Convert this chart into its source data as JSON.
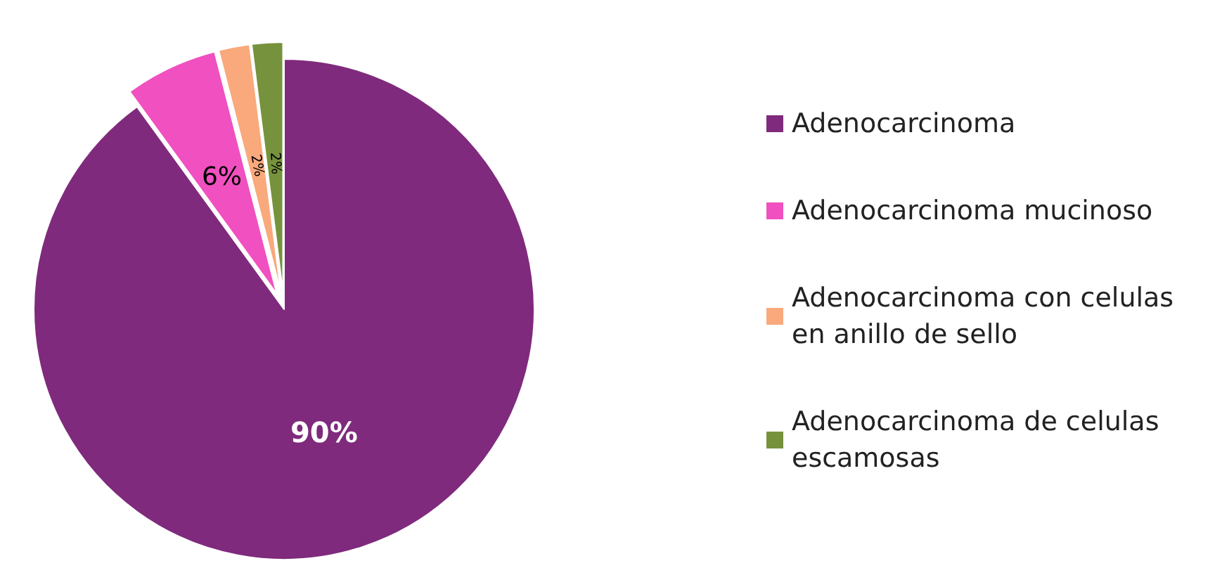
{
  "chart_data": {
    "type": "pie",
    "categories": [
      "Adenocarcinoma",
      "Adenocarcinoma mucinoso",
      "Adenocarcinoma con celulas en anillo de sello",
      "Adenocarcinoma de celulas escamosas"
    ],
    "values": [
      90,
      6,
      2,
      2
    ],
    "colors": [
      "#7f2a7c",
      "#f050c0",
      "#f9a97c",
      "#76923c"
    ],
    "value_labels": [
      "90%",
      "6%",
      "2%",
      "2%"
    ],
    "legend": "right"
  }
}
